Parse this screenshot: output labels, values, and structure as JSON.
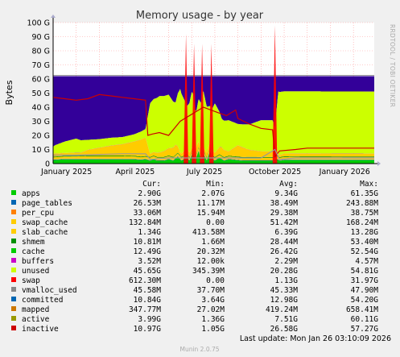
{
  "chart_data": {
    "type": "area",
    "title": "Memory usage - by year",
    "ylabel": "Bytes",
    "side_label": "RRDTOOL / TOBI OETIKER",
    "ylim": [
      0,
      100
    ],
    "y_ticks": [
      "0",
      "10 G",
      "20 G",
      "30 G",
      "40 G",
      "50 G",
      "60 G",
      "70 G",
      "80 G",
      "90 G",
      "100 G"
    ],
    "x_ticks": [
      "January 2025",
      "April 2025",
      "July 2025",
      "October 2025",
      "January 2026"
    ],
    "x_range": [
      0,
      13.9
    ],
    "x_tick_positions": [
      0.58,
      3.55,
      6.55,
      9.6,
      12.62
    ],
    "stacked_series": [
      {
        "name": "apps",
        "color": "#00cc00",
        "points": [
          [
            0,
            2.5
          ],
          [
            0.5,
            3
          ],
          [
            1.5,
            3
          ],
          [
            2.5,
            3
          ],
          [
            3,
            3
          ],
          [
            3.5,
            3
          ],
          [
            3.8,
            2.5
          ],
          [
            4,
            3
          ],
          [
            4.2,
            2
          ],
          [
            4.35,
            3
          ],
          [
            4.5,
            2
          ],
          [
            4.8,
            2
          ],
          [
            5.0,
            3
          ],
          [
            5.2,
            2
          ],
          [
            5.4,
            5
          ],
          [
            5.55,
            2
          ],
          [
            5.8,
            4
          ],
          [
            5.9,
            2
          ],
          [
            6.05,
            8
          ],
          [
            6.15,
            2
          ],
          [
            6.3,
            9
          ],
          [
            6.4,
            2
          ],
          [
            6.5,
            7
          ],
          [
            6.65,
            2
          ],
          [
            6.8,
            9
          ],
          [
            6.9,
            3
          ],
          [
            7.0,
            2
          ],
          [
            7.2,
            4
          ],
          [
            7.4,
            2
          ],
          [
            7.6,
            3
          ],
          [
            7.9,
            2.5
          ],
          [
            8.2,
            2
          ],
          [
            9,
            2
          ],
          [
            9.5,
            2
          ],
          [
            9.7,
            3
          ],
          [
            9.8,
            2
          ],
          [
            10.0,
            2.5
          ],
          [
            10.5,
            2.5
          ],
          [
            11,
            2.5
          ],
          [
            12,
            2.5
          ],
          [
            13,
            2.5
          ],
          [
            13.9,
            2.5
          ]
        ]
      },
      {
        "name": "page_tables",
        "color": "#0066b3",
        "points": [
          [
            0,
            0.3
          ],
          [
            13.9,
            0.3
          ]
        ]
      },
      {
        "name": "per_cpu",
        "color": "#ff8000",
        "points": [
          [
            0,
            0.2
          ],
          [
            13.9,
            0.2
          ]
        ]
      },
      {
        "name": "swap_cache",
        "color": "#ffcc00",
        "points": [
          [
            0,
            0.2
          ],
          [
            4.0,
            0.2
          ],
          [
            4.2,
            0.5
          ],
          [
            13.9,
            0.2
          ]
        ]
      },
      {
        "name": "slab_cache",
        "color": "#ffcc00",
        "points": [
          [
            0,
            1.2
          ],
          [
            1.5,
            1.5
          ],
          [
            3,
            1.5
          ],
          [
            3.5,
            1.4
          ],
          [
            4,
            1.2
          ],
          [
            5,
            1.3
          ],
          [
            6,
            1.3
          ],
          [
            7.5,
            1.2
          ],
          [
            8.5,
            1.3
          ],
          [
            10,
            1.3
          ],
          [
            11,
            1.3
          ],
          [
            12,
            1.3
          ],
          [
            13.9,
            1.3
          ]
        ]
      },
      {
        "name": "shmem",
        "color": "#008f00",
        "points": [
          [
            0,
            0.5
          ],
          [
            13.9,
            0.5
          ]
        ]
      },
      {
        "name": "cache",
        "color": "#ffcc00",
        "points": [
          [
            0,
            2
          ],
          [
            1.2,
            2
          ],
          [
            1.5,
            4
          ],
          [
            2,
            5.5
          ],
          [
            2.5,
            7
          ],
          [
            3,
            8
          ],
          [
            3.5,
            10
          ],
          [
            3.8,
            12
          ],
          [
            4.0,
            13
          ],
          [
            4.2,
            2
          ],
          [
            4.6,
            3
          ],
          [
            5,
            5
          ],
          [
            5.3,
            7
          ],
          [
            5.5,
            2
          ],
          [
            5.8,
            4
          ],
          [
            6,
            2
          ],
          [
            6.2,
            5
          ],
          [
            6.5,
            2
          ],
          [
            6.8,
            4
          ],
          [
            7.0,
            3
          ],
          [
            7.3,
            6
          ],
          [
            7.6,
            3
          ],
          [
            8,
            8
          ],
          [
            8.5,
            5
          ],
          [
            9,
            4
          ],
          [
            9.5,
            4
          ],
          [
            9.6,
            15
          ],
          [
            9.75,
            1
          ],
          [
            10,
            2
          ],
          [
            10.5,
            2
          ],
          [
            11,
            2
          ],
          [
            12,
            2
          ],
          [
            13,
            2
          ],
          [
            13.9,
            2
          ]
        ]
      },
      {
        "name": "buffers",
        "color": "#cc00cc",
        "points": [
          [
            0,
            0.1
          ],
          [
            13.9,
            0.1
          ]
        ]
      },
      {
        "name": "unused",
        "color": "#ccff00",
        "points": [
          [
            0,
            5
          ],
          [
            0.1,
            6
          ],
          [
            0.5,
            8
          ],
          [
            1,
            10
          ],
          [
            1.5,
            7
          ],
          [
            2,
            6
          ],
          [
            3,
            5
          ],
          [
            3.5,
            5
          ],
          [
            4,
            6
          ],
          [
            4.2,
            36
          ],
          [
            4.6,
            40
          ],
          [
            5,
            38
          ],
          [
            5.3,
            30
          ],
          [
            5.5,
            45
          ],
          [
            5.8,
            30
          ],
          [
            6,
            40
          ],
          [
            6.2,
            25
          ],
          [
            6.5,
            40
          ],
          [
            6.8,
            25
          ],
          [
            7.0,
            35
          ],
          [
            7.3,
            20
          ],
          [
            7.6,
            22
          ],
          [
            8,
            15
          ],
          [
            8.5,
            18
          ],
          [
            9,
            22
          ],
          [
            9.5,
            22
          ],
          [
            9.6,
            5
          ],
          [
            9.75,
            45
          ],
          [
            10,
            44
          ],
          [
            10.5,
            44
          ],
          [
            11,
            44
          ],
          [
            12,
            44
          ],
          [
            13,
            44
          ],
          [
            13.9,
            44
          ]
        ]
      },
      {
        "name": "vmalloc_used",
        "color": "#ccff00",
        "points": [
          [
            0,
            0
          ],
          [
            13.9,
            0
          ]
        ]
      }
    ],
    "stacked_top_color": "#330099",
    "stacked_top_name": "inactive",
    "line_series": [
      {
        "name": "swap",
        "color": "#ff0000",
        "fill": true,
        "points": [
          [
            0,
            0
          ],
          [
            5.65,
            0
          ],
          [
            5.75,
            92
          ],
          [
            5.85,
            0
          ],
          [
            6.0,
            0
          ],
          [
            6.1,
            85
          ],
          [
            6.2,
            0
          ],
          [
            6.35,
            0
          ],
          [
            6.45,
            85
          ],
          [
            6.55,
            0
          ],
          [
            6.75,
            0
          ],
          [
            6.85,
            85
          ],
          [
            6.95,
            0
          ],
          [
            9.5,
            0
          ],
          [
            9.6,
            98
          ],
          [
            9.7,
            0
          ],
          [
            13.9,
            0
          ]
        ]
      },
      {
        "name": "committed",
        "color": "#cc0000",
        "fill": false,
        "points": [
          [
            0,
            47
          ],
          [
            0.5,
            46
          ],
          [
            1,
            45
          ],
          [
            1.5,
            46
          ],
          [
            2,
            49
          ],
          [
            2.5,
            48
          ],
          [
            3,
            47
          ],
          [
            3.5,
            46
          ],
          [
            4.0,
            45
          ],
          [
            4.1,
            20
          ],
          [
            4.3,
            21
          ],
          [
            4.6,
            22
          ],
          [
            5,
            20
          ],
          [
            5.5,
            30
          ],
          [
            6,
            35
          ],
          [
            6.5,
            40
          ],
          [
            7,
            37
          ],
          [
            7.5,
            34
          ],
          [
            7.9,
            38
          ],
          [
            8.0,
            32
          ],
          [
            8.5,
            28
          ],
          [
            9,
            25
          ],
          [
            9.5,
            24
          ],
          [
            9.6,
            5
          ],
          [
            9.8,
            9
          ],
          [
            10.5,
            10
          ],
          [
            11,
            11
          ],
          [
            12,
            11
          ],
          [
            13.9,
            11
          ]
        ]
      },
      {
        "name": "mapped",
        "color": "#999999",
        "fill": false,
        "points": [
          [
            0,
            6
          ],
          [
            1,
            6
          ],
          [
            3,
            7
          ],
          [
            4,
            7
          ],
          [
            4.2,
            3
          ],
          [
            5,
            4
          ],
          [
            6,
            4
          ],
          [
            7,
            4
          ],
          [
            8,
            4
          ],
          [
            9,
            4
          ],
          [
            9.6,
            10
          ],
          [
            9.8,
            3
          ],
          [
            10.5,
            4
          ],
          [
            11,
            4
          ],
          [
            12,
            4
          ],
          [
            13.9,
            4
          ]
        ]
      }
    ],
    "legend": {
      "headers": [
        "Cur:",
        "Min:",
        "Avg:",
        "Max:"
      ],
      "rows": [
        {
          "name": "apps",
          "color": "#00cc00",
          "cur": "2.90G",
          "min": "2.07G",
          "avg": "9.34G",
          "max": "61.35G"
        },
        {
          "name": "page_tables",
          "color": "#0066b3",
          "cur": "26.53M",
          "min": "11.17M",
          "avg": "38.49M",
          "max": "243.88M"
        },
        {
          "name": "per_cpu",
          "color": "#ff8000",
          "cur": "33.06M",
          "min": "15.94M",
          "avg": "29.38M",
          "max": "38.75M"
        },
        {
          "name": "swap_cache",
          "color": "#ffcc00",
          "cur": "132.84M",
          "min": "0.00",
          "avg": "51.42M",
          "max": "168.24M"
        },
        {
          "name": "slab_cache",
          "color": "#ffcc00",
          "cur": "1.34G",
          "min": "413.58M",
          "avg": "6.39G",
          "max": "13.28G"
        },
        {
          "name": "shmem",
          "color": "#008f00",
          "cur": "10.81M",
          "min": "1.66M",
          "avg": "28.44M",
          "max": "53.40M"
        },
        {
          "name": "cache",
          "color": "#00cc00",
          "cur": "12.49G",
          "min": "20.32M",
          "avg": "26.42G",
          "max": "52.54G"
        },
        {
          "name": "buffers",
          "color": "#cc00cc",
          "cur": "3.52M",
          "min": "12.00k",
          "avg": "2.29M",
          "max": "4.57M"
        },
        {
          "name": "unused",
          "color": "#ccff00",
          "cur": "45.65G",
          "min": "345.39M",
          "avg": "20.28G",
          "max": "54.81G"
        },
        {
          "name": "swap",
          "color": "#ff0000",
          "cur": "612.30M",
          "min": "0.00",
          "avg": "1.13G",
          "max": "31.97G"
        },
        {
          "name": "vmalloc_used",
          "color": "#888888",
          "cur": "45.58M",
          "min": "37.70M",
          "avg": "45.33M",
          "max": "47.90M"
        },
        {
          "name": "committed",
          "color": "#0066b3",
          "cur": "10.84G",
          "min": "3.64G",
          "avg": "12.98G",
          "max": "54.20G"
        },
        {
          "name": "mapped",
          "color": "#cc7700",
          "cur": "347.77M",
          "min": "27.02M",
          "avg": "419.24M",
          "max": "658.41M"
        },
        {
          "name": "active",
          "color": "#999900",
          "cur": "3.99G",
          "min": "1.36G",
          "avg": "7.51G",
          "max": "60.11G"
        },
        {
          "name": "inactive",
          "color": "#cc0000",
          "cur": "10.97G",
          "min": "1.05G",
          "avg": "26.58G",
          "max": "57.27G"
        }
      ]
    },
    "last_update": "Last update: Mon Jan 26 03:10:09 2026",
    "version": "Munin 2.0.75",
    "colors": {
      "background": "#f0f0f0",
      "plot_bg": "#ffffff",
      "grid": "#ff9999",
      "axis": "#000000"
    }
  }
}
